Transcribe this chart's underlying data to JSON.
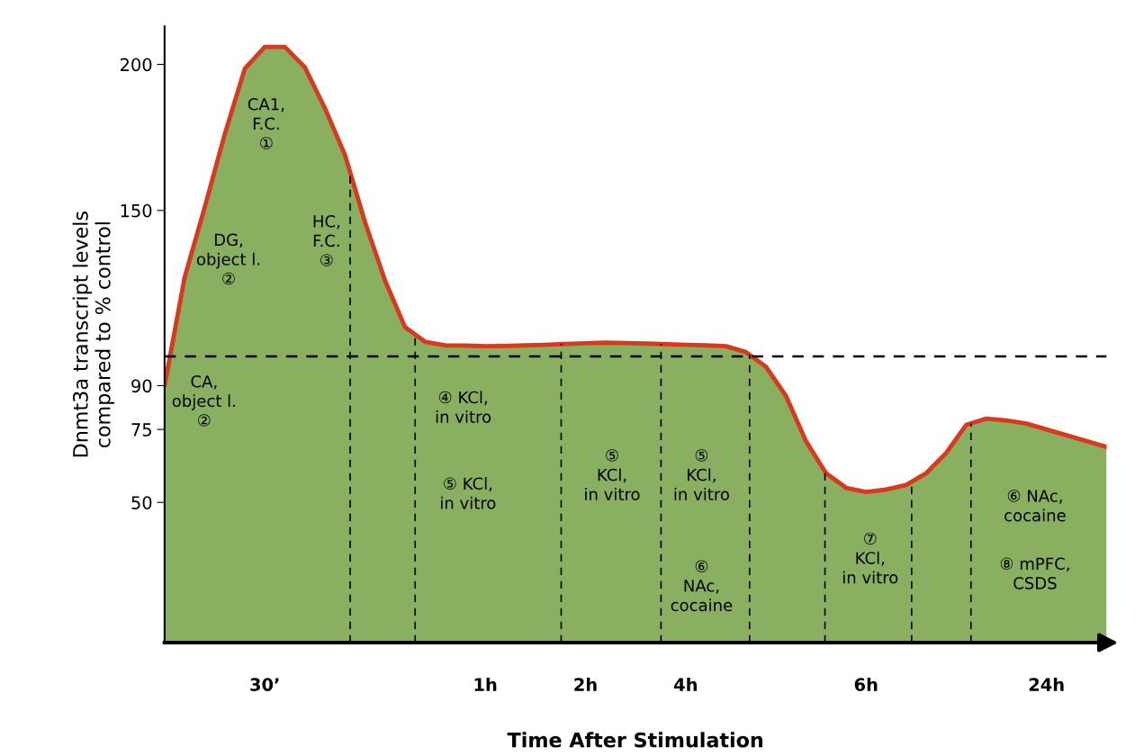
{
  "chart_data": {
    "type": "area",
    "xlabel": "Time After Stimulation",
    "ylabel": "Dnmt3a transcript levels\ncompared to % control",
    "categories": [
      null,
      null,
      null,
      null,
      null,
      "30’",
      null,
      null,
      null,
      null,
      null,
      null,
      null,
      null,
      null,
      null,
      "1h",
      null,
      null,
      null,
      null,
      "2h",
      null,
      null,
      null,
      null,
      "4h",
      null,
      null,
      null,
      null,
      null,
      null,
      null,
      null,
      "6h",
      null,
      null,
      null,
      null,
      null,
      null,
      null,
      null,
      "24h",
      null,
      null,
      null
    ],
    "series": [
      {
        "color": "#88b060",
        "values": [
          90,
          127,
          151,
          176,
          198.5,
          206,
          206,
          199,
          185,
          169,
          146,
          126,
          110,
          105,
          103.8,
          103.7,
          103.5,
          103.6,
          103.8,
          104,
          104.3,
          104.5,
          104.7,
          104.6,
          104.4,
          104.2,
          104,
          103.8,
          103.5,
          101.5,
          96.5,
          86.5,
          71,
          60,
          55,
          53.6,
          54.4,
          56,
          60,
          67,
          76.6,
          78.7,
          78.1,
          77,
          75,
          73,
          71,
          69
        ]
      },
      {
        "type": "line",
        "color": "#d9391f",
        "values": [
          90,
          127,
          151,
          176,
          198.5,
          206,
          206,
          199,
          185,
          169,
          146,
          126,
          110,
          105,
          103.8,
          103.7,
          103.5,
          103.6,
          103.8,
          104,
          104.3,
          104.5,
          104.7,
          104.6,
          104.4,
          104.2,
          104,
          103.8,
          103.5,
          101.5,
          96.5,
          86.5,
          71,
          60,
          55,
          53.6,
          54.4,
          56,
          60,
          67,
          76.6,
          78.7,
          78.1,
          77,
          75,
          73,
          71,
          69
        ]
      }
    ],
    "ylim": [
      2,
      213
    ],
    "yticks": [
      50,
      75,
      90,
      150,
      200
    ],
    "grid": false,
    "ref_lines": [
      {
        "axis": "y",
        "value": 100,
        "line_style": "dashed",
        "color": "#000000"
      }
    ],
    "annotations": [
      "CA1,\nF.C.\n①",
      "DG,\nobject l.\n②",
      "HC,\nF.C.\n③",
      "CA,\nobject l.\n②",
      "④ KCl,\nin vitro",
      "⑤ KCl,\nin vitro",
      "⑤\nKCl,\nin vitro",
      "⑤\nKCl,\nin vitro",
      "⑥\nNAc,\ncocaine",
      "⑦\nKCl,\nin vitro",
      "⑥ NAc,\ncocaine",
      "⑧ mPFC,\nCSDS"
    ]
  }
}
